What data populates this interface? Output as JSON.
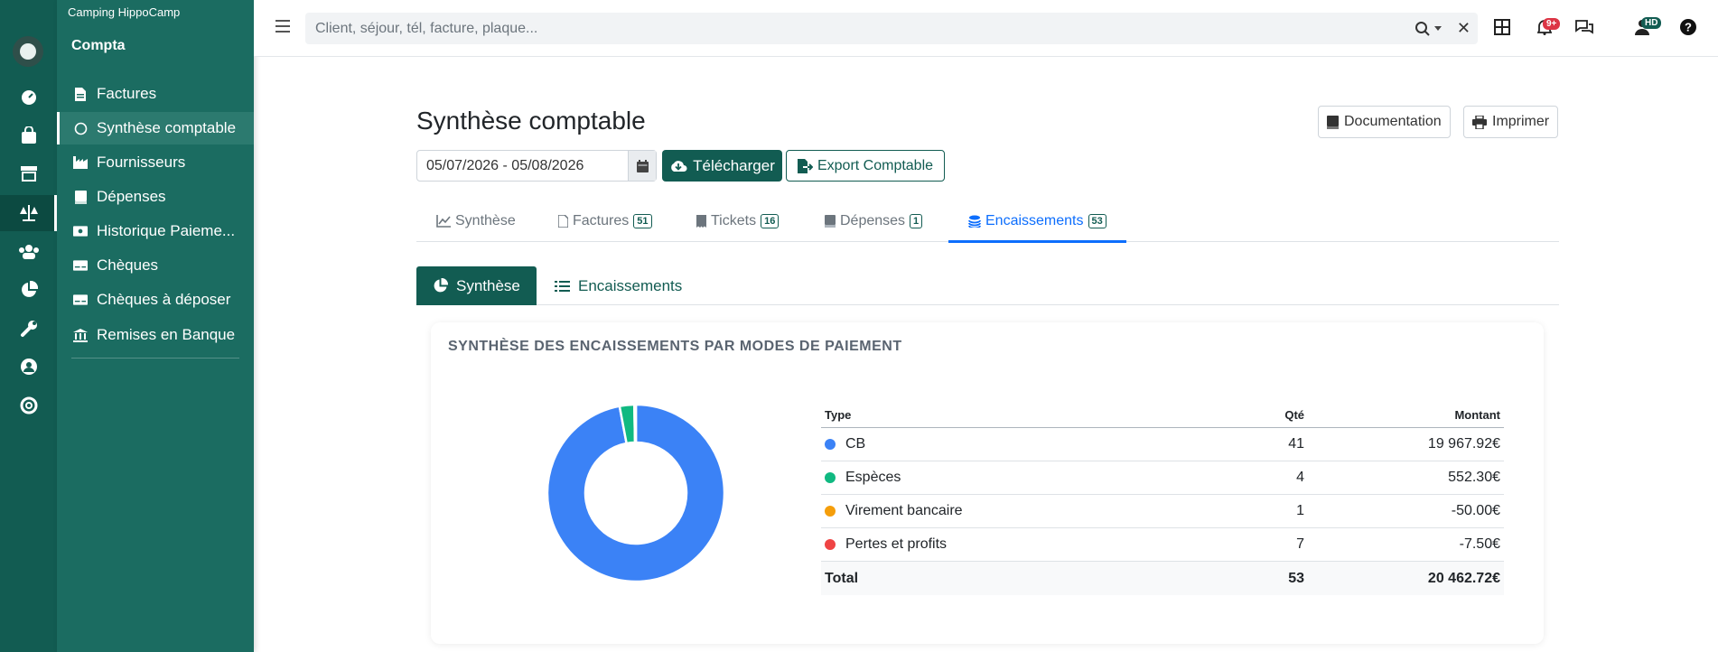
{
  "sidebar": {
    "camping": "Camping HippoCamp",
    "module": "Compta",
    "items": [
      {
        "label": "Factures",
        "icon": "invoice-icon"
      },
      {
        "label": "Synthèse comptable",
        "icon": "circle-icon"
      },
      {
        "label": "Fournisseurs",
        "icon": "industry-icon"
      },
      {
        "label": "Dépenses",
        "icon": "book-icon"
      },
      {
        "label": "Historique Paieme...",
        "icon": "money-bill-icon"
      },
      {
        "label": "Chèques",
        "icon": "money-check-icon"
      },
      {
        "label": "Chèques à déposer",
        "icon": "money-check-icon"
      },
      {
        "label": "Remises en Banque",
        "icon": "bank-icon"
      }
    ]
  },
  "search": {
    "placeholder": "Client, séjour, tél, facture, plaque..."
  },
  "topbar": {
    "notifications_badge": "9+",
    "user_initials": "HD"
  },
  "page": {
    "title": "Synthèse comptable",
    "documentation": "Documentation",
    "print": "Imprimer",
    "date_range": "05/07/2026 - 05/08/2026",
    "download": "Télécharger",
    "export": "Export Comptable"
  },
  "tabs": [
    {
      "label": "Synthèse"
    },
    {
      "label": "Factures",
      "count": "51"
    },
    {
      "label": "Tickets",
      "count": "16"
    },
    {
      "label": "Dépenses",
      "count": "1"
    },
    {
      "label": "Encaissements",
      "count": "53"
    }
  ],
  "subtabs": [
    {
      "label": "Synthèse"
    },
    {
      "label": "Encaissements"
    }
  ],
  "card": {
    "title": "SYNTHÈSE DES ENCAISSEMENTS PAR MODES DE PAIEMENT"
  },
  "table": {
    "headers": {
      "type": "Type",
      "qty": "Qté",
      "amount": "Montant"
    },
    "rows": [
      {
        "type": "CB",
        "qty": "41",
        "amount": "19 967.92€"
      },
      {
        "type": "Espèces",
        "qty": "4",
        "amount": "552.30€"
      },
      {
        "type": "Virement bancaire",
        "qty": "1",
        "amount": "-50.00€"
      },
      {
        "type": "Pertes et profits",
        "qty": "7",
        "amount": "-7.50€"
      }
    ],
    "total": {
      "label": "Total",
      "qty": "53",
      "amount": "20 462.72€"
    }
  },
  "colors": {
    "brand": "#125c52",
    "cb": "#3b82f6",
    "especes": "#10b981",
    "virement": "#f59e0b",
    "pertes": "#ef4444"
  },
  "chart_data": {
    "type": "pie",
    "categories": [
      "CB",
      "Espèces",
      "Virement bancaire",
      "Pertes et profits"
    ],
    "values": [
      19967.92,
      552.3,
      50.0,
      7.5
    ]
  }
}
